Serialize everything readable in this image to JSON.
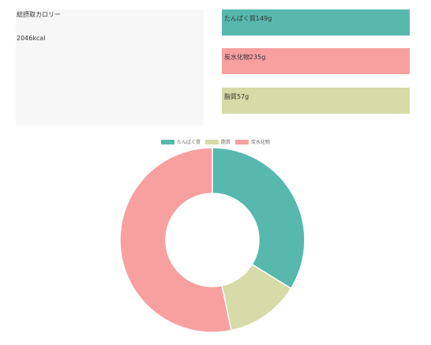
{
  "total": {
    "label": "総摂取カロリー",
    "value": "2046kcal"
  },
  "cards": {
    "protein": {
      "label": "たんぱく質",
      "value": "149g",
      "color": "#57b8ae"
    },
    "carb": {
      "label": "炭水化物",
      "value": "235g",
      "color": "#f7a09f"
    },
    "fat": {
      "label": "脂質",
      "value": "57g",
      "color": "#d6dba7"
    }
  },
  "chart_data": {
    "type": "pie",
    "categories": [
      "たんぱく質",
      "脂質",
      "炭水化物"
    ],
    "values": [
      149,
      57,
      235
    ],
    "colors": [
      "#57b8ae",
      "#d6dba7",
      "#f7a09f"
    ],
    "legend": "top",
    "donut": true
  }
}
